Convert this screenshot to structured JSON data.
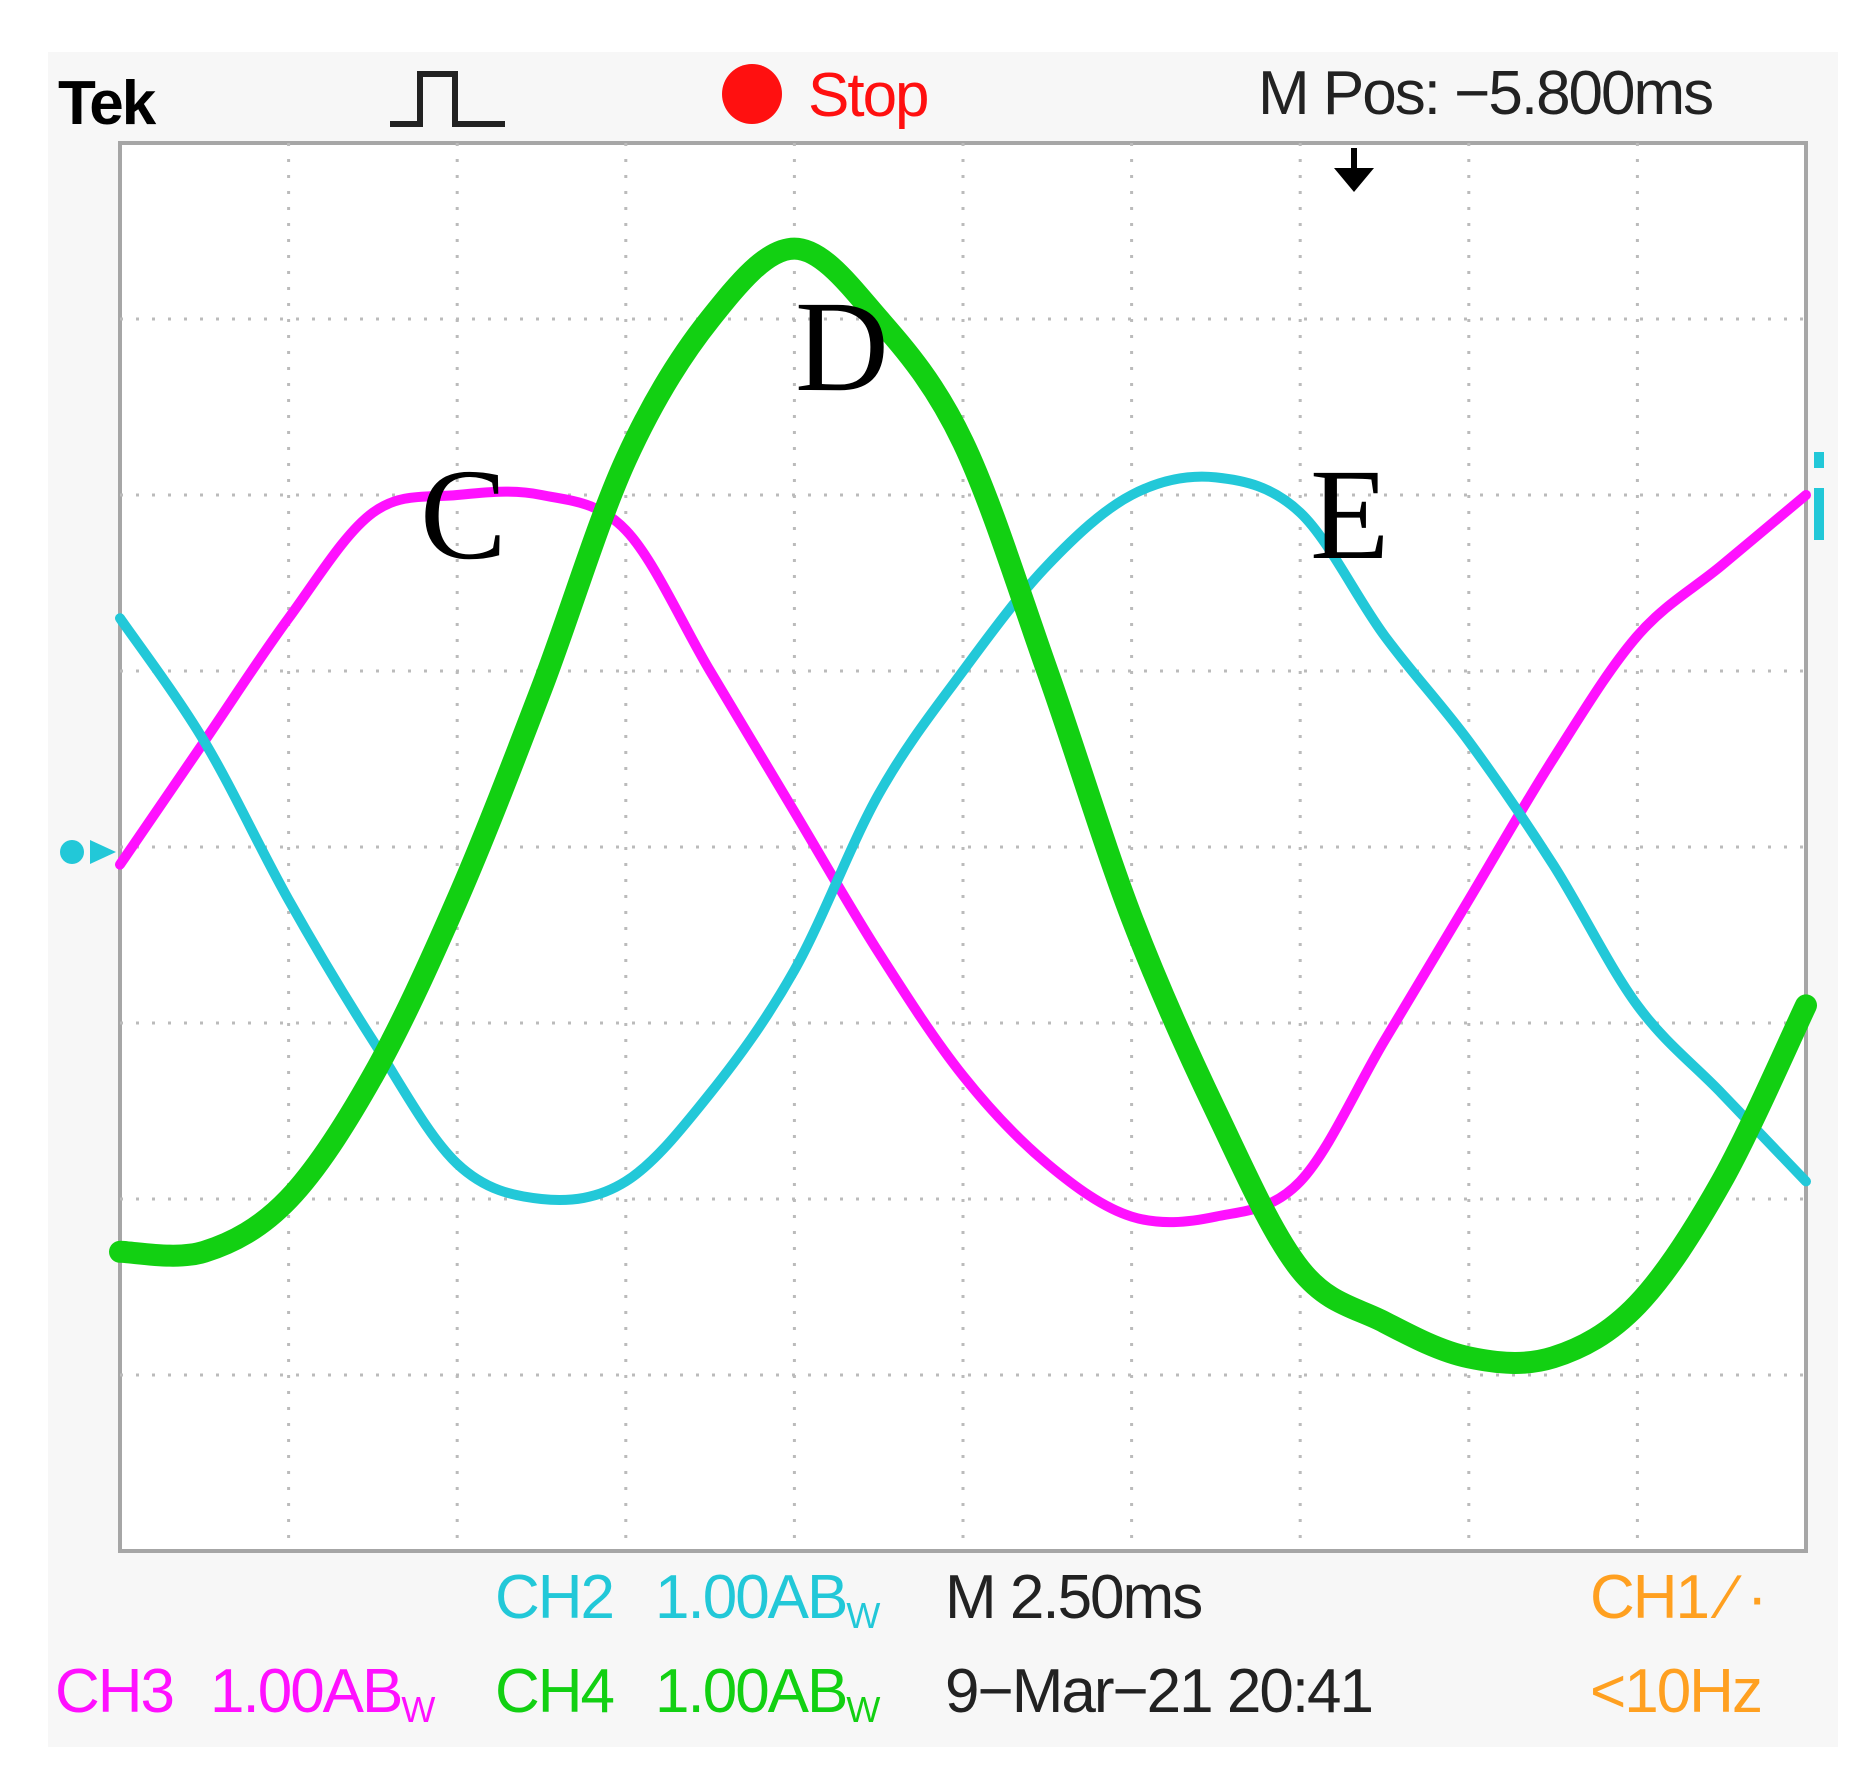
{
  "header": {
    "brand": "Tek",
    "trigger_icon": "pulse-icon",
    "run_state": "Stop",
    "run_state_icon": "record-dot-icon",
    "m_pos": "M Pos: −5.800ms"
  },
  "footer": {
    "ch2_name": "CH2",
    "ch2_scale": "1.00A",
    "ch3_name": "CH3",
    "ch3_scale": "1.00A",
    "ch4_name": "CH4",
    "ch4_scale": "1.00A",
    "bandwidth_suffix": "B",
    "bandwidth_sub": "W",
    "timebase": "M 2.50ms",
    "date": "9−Mar−21 20:41",
    "ch1_trigger": "CH1 ∕ ·",
    "freq": "<10Hz"
  },
  "colors": {
    "ch2": "#22c8d8",
    "ch3": "#ff10ff",
    "ch4": "#12d012",
    "ch1": "#ffa020",
    "stop": "#ff1010",
    "grid": "#bbbbbb"
  },
  "chart_data": {
    "type": "line",
    "x_unit": "div",
    "y_unit": "div",
    "xlim": [
      0,
      10
    ],
    "ylim": [
      -4,
      4
    ],
    "grid": true,
    "annotations": [
      "C",
      "D",
      "E"
    ],
    "series": [
      {
        "name": "CH3",
        "color": "#ff10ff",
        "x": [
          0,
          0.5,
          1,
          1.5,
          2,
          2.5,
          3,
          3.5,
          4,
          4.5,
          5,
          5.5,
          6,
          6.5,
          7,
          7.5,
          8,
          8.5,
          9,
          9.5,
          10
        ],
        "y": [
          -0.1,
          0.6,
          1.3,
          1.9,
          2.0,
          2.0,
          1.8,
          1.0,
          0.2,
          -0.6,
          -1.3,
          -1.8,
          -2.1,
          -2.1,
          -1.9,
          -1.1,
          -0.3,
          0.5,
          1.2,
          1.6,
          2.0
        ]
      },
      {
        "name": "CH2",
        "color": "#22c8d8",
        "x": [
          0,
          0.5,
          1,
          1.5,
          2,
          2.5,
          3,
          3.5,
          4,
          4.5,
          5,
          5.5,
          6,
          6.5,
          7,
          7.5,
          8,
          8.5,
          9,
          9.5,
          10
        ],
        "y": [
          1.3,
          0.6,
          -0.3,
          -1.1,
          -1.8,
          -2.0,
          -1.9,
          -1.4,
          -0.7,
          0.3,
          1.0,
          1.6,
          2.0,
          2.1,
          1.9,
          1.2,
          0.6,
          -0.1,
          -0.9,
          -1.4,
          -1.9
        ]
      },
      {
        "name": "CH4",
        "color": "#12d012",
        "x": [
          0,
          0.5,
          1,
          1.5,
          2,
          2.5,
          3,
          3.5,
          4,
          4.5,
          5,
          5.5,
          6,
          6.5,
          7,
          7.5,
          8,
          8.5,
          9,
          9.5,
          10
        ],
        "y": [
          -2.3,
          -2.3,
          -2.0,
          -1.3,
          -0.3,
          0.9,
          2.2,
          3.0,
          3.4,
          3.0,
          2.3,
          1.0,
          -0.4,
          -1.5,
          -2.4,
          -2.7,
          -2.9,
          -2.9,
          -2.6,
          -1.9,
          -0.9
        ]
      }
    ]
  }
}
